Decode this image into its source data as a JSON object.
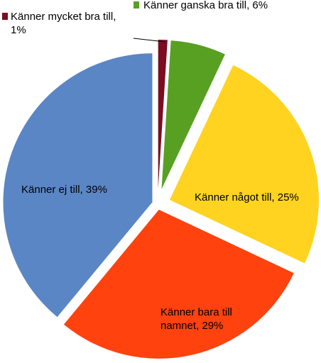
{
  "chart_data": {
    "type": "pie",
    "exploded": true,
    "slices": [
      {
        "label": "Känner mycket bra till",
        "value": 1,
        "value_label": "1%",
        "color": "#7b0c22",
        "label_outside": true
      },
      {
        "label": "Känner ganska bra till",
        "value": 6,
        "value_label": "6%",
        "color": "#58a021",
        "label_outside": true
      },
      {
        "label": "Känner något till",
        "value": 25,
        "value_label": "25%",
        "color": "#ffd320",
        "label_outside": false
      },
      {
        "label": "Känner bara till namnet",
        "value": 29,
        "value_label": "29%",
        "color": "#ff420e",
        "label_outside": false
      },
      {
        "label": "Känner ej till",
        "value": 39,
        "value_label": "39%",
        "color": "#5b86c5",
        "label_outside": false
      }
    ]
  },
  "labels": {
    "mycket_line1": "Känner mycket bra till,",
    "mycket_line2": "1%",
    "ganska": "Känner ganska bra till, 6%",
    "nagot": "Känner något till, 25%",
    "bara_line1": "Känner bara till",
    "bara_line2": "namnet, 29%",
    "ej": "Känner ej till, 39%"
  }
}
